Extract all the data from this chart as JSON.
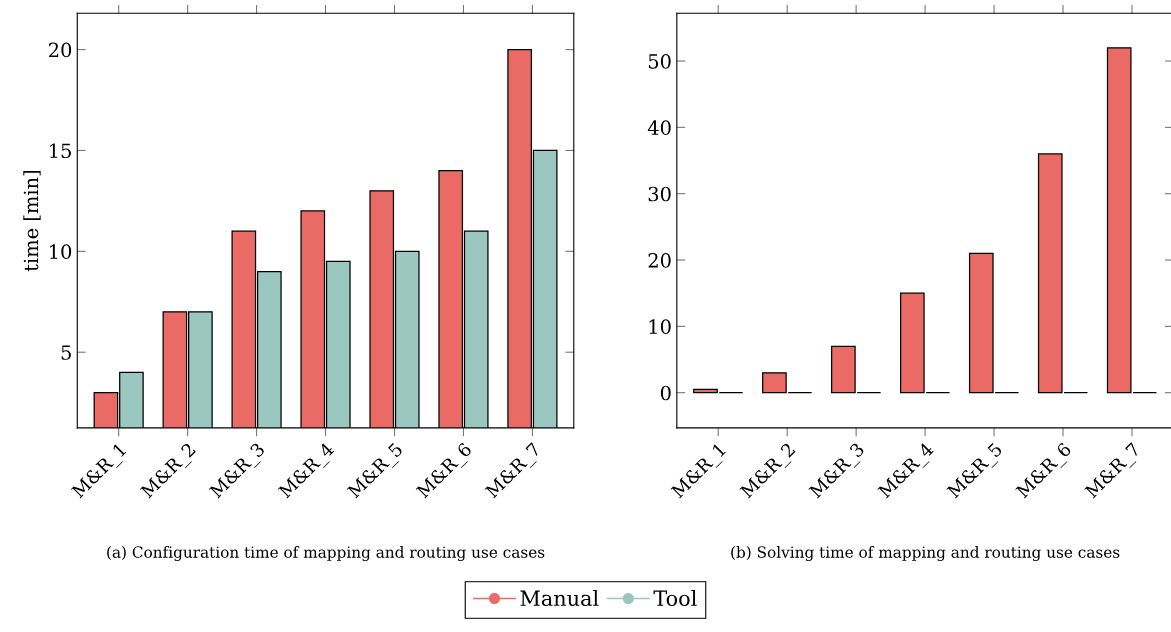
{
  "chart_data": [
    {
      "type": "bar",
      "ylabel": "time [min]",
      "categories": [
        "M&R_1",
        "M&R_2",
        "M&R_3",
        "M&R_4",
        "M&R_5",
        "M&R_6",
        "M&R_7"
      ],
      "series": [
        {
          "name": "Manual",
          "color": "#ea6b66",
          "values": [
            3,
            7,
            11,
            12,
            13,
            14,
            20
          ]
        },
        {
          "name": "Tool",
          "color": "#9ac7bf",
          "values": [
            4,
            7,
            9,
            9.5,
            10,
            11,
            15
          ]
        }
      ],
      "ylim": [
        1.25,
        21.8
      ],
      "yticks": [
        5,
        10,
        15,
        20
      ],
      "grid": false,
      "legend": "bottom",
      "marker": "circle",
      "annotations": [
        "(a) Configuration time of mapping and routing use cases"
      ]
    },
    {
      "type": "bar",
      "categories": [
        "M&R_1",
        "M&R_2",
        "M&R_3",
        "M&R_4",
        "M&R_5",
        "M&R_6",
        "M&R_7"
      ],
      "series": [
        {
          "color": "#ea6b66",
          "values": [
            0.5,
            3,
            7,
            15,
            21,
            36,
            52
          ]
        },
        {
          "color": "#000000",
          "values": [
            0,
            0,
            0,
            0,
            0,
            0,
            0
          ]
        }
      ],
      "ylim": [
        -5.3,
        57.2
      ],
      "yticks": [
        0,
        10,
        20,
        30,
        40,
        50
      ],
      "grid": false,
      "annotations": [
        "(b) Solving time of mapping and routing use cases"
      ]
    }
  ]
}
